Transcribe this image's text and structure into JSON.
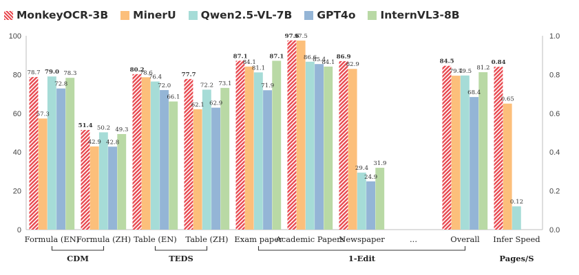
{
  "legend": {
    "items": [
      {
        "name": "MonkeyOCR-3B",
        "color": "#e8484f",
        "pattern": "hatch"
      },
      {
        "name": "MinerU",
        "color": "#fcbf7b",
        "pattern": "solid"
      },
      {
        "name": "Qwen2.5-VL-7B",
        "color": "#a6dcd7",
        "pattern": "solid"
      },
      {
        "name": "GPT4o",
        "color": "#94b5d6",
        "pattern": "solid"
      },
      {
        "name": "InternVL3-8B",
        "color": "#b9d9a5",
        "pattern": "solid"
      }
    ]
  },
  "chart_data": {
    "type": "bar",
    "categories": [
      "Formula (EN)",
      "Formula (ZH)",
      "Table (EN)",
      "Table (ZH)",
      "Exam paper",
      "Academic Papers",
      "Newspaper",
      "...",
      "Overall",
      "Infer Speed"
    ],
    "series": [
      {
        "name": "MonkeyOCR-3B",
        "values": [
          78.7,
          51.4,
          80.2,
          77.7,
          87.1,
          97.6,
          86.9,
          null,
          84.5,
          0.84
        ]
      },
      {
        "name": "MinerU",
        "values": [
          57.3,
          42.9,
          78.6,
          62.1,
          84.1,
          97.5,
          82.9,
          null,
          79.4,
          0.65
        ]
      },
      {
        "name": "Qwen2.5-VL-7B",
        "values": [
          79.0,
          50.2,
          76.4,
          72.2,
          81.1,
          86.6,
          29.4,
          null,
          79.5,
          0.12
        ]
      },
      {
        "name": "GPT4o",
        "values": [
          72.8,
          42.8,
          72.0,
          62.9,
          71.9,
          85.4,
          24.9,
          null,
          68.4,
          null
        ]
      },
      {
        "name": "InternVL3-8B",
        "values": [
          78.3,
          49.3,
          66.1,
          73.1,
          87.1,
          84.1,
          31.9,
          null,
          81.2,
          null
        ]
      }
    ],
    "value_labels": [
      [
        "78.7",
        "51.4",
        "80.2",
        "77.7",
        "87.1",
        "97.6",
        "86.9",
        null,
        "84.5",
        "0.84"
      ],
      [
        "57.3",
        "42.9",
        "78.6",
        "62.1",
        "84.1",
        "97.5",
        "82.9",
        null,
        "79.4",
        "0.65"
      ],
      [
        "79.0",
        "50.2",
        "76.4",
        "72.2",
        "81.1",
        "86.6",
        "29.4",
        null,
        "79.5",
        "0.12"
      ],
      [
        "72.8",
        "42.8",
        "72.0",
        "62.9",
        "71.9",
        "85.4",
        "24.9",
        null,
        "68.4",
        null
      ],
      [
        "78.3",
        "49.3",
        "66.1",
        "73.1",
        "87.1",
        "84.1",
        "31.9",
        null,
        "81.2",
        null
      ]
    ],
    "bold_labels": [
      [
        false,
        true,
        true,
        true,
        true,
        true,
        true,
        false,
        true,
        true
      ],
      [
        false,
        false,
        false,
        false,
        false,
        false,
        false,
        false,
        false,
        false
      ],
      [
        true,
        false,
        false,
        false,
        false,
        false,
        false,
        false,
        false,
        false
      ],
      [
        false,
        false,
        false,
        false,
        false,
        false,
        false,
        false,
        false,
        false
      ],
      [
        false,
        false,
        false,
        false,
        true,
        false,
        false,
        false,
        false,
        false
      ]
    ],
    "secondary_axis_categories": [
      "Infer Speed"
    ],
    "ylim": [
      0,
      100
    ],
    "yticks": [
      "0",
      "20",
      "40",
      "60",
      "80",
      "100"
    ],
    "y2lim": [
      0,
      1.0
    ],
    "y2ticks": [
      "0.0",
      "0.2",
      "0.4",
      "0.6",
      "0.8",
      "1.0"
    ],
    "groups": [
      {
        "label": "CDM",
        "categories": [
          "Formula (EN)",
          "Formula (ZH)"
        ]
      },
      {
        "label": "TEDS",
        "categories": [
          "Table (EN)",
          "Table (ZH)"
        ]
      },
      {
        "label": "1-Edit",
        "categories": [
          "Exam paper",
          "Academic Papers",
          "Newspaper",
          "...",
          "Overall"
        ]
      },
      {
        "label": "Pages/S",
        "categories": [
          "Infer Speed"
        ]
      }
    ],
    "grid": false,
    "legend_position": "top-left"
  }
}
